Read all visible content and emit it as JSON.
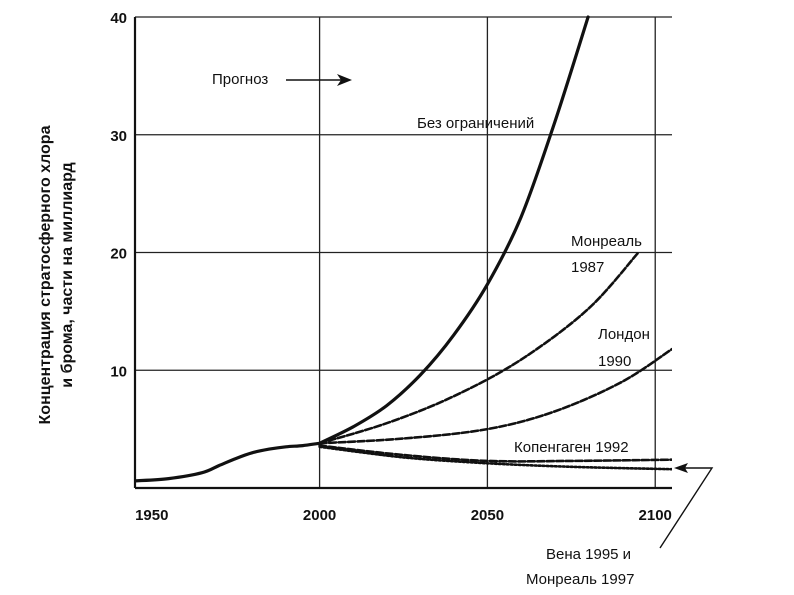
{
  "chart_data": {
    "type": "line",
    "ylabel_lines": [
      "Концентрация стратосферного хлора",
      "и брома, части на миллиард"
    ],
    "xlim": [
      1945,
      2105
    ],
    "ylim": [
      0,
      40
    ],
    "x_ticks": [
      1950,
      2000,
      2050,
      2100
    ],
    "y_ticks": [
      10,
      20,
      30,
      40
    ],
    "grid": true,
    "forecast_label": "Прогноз",
    "forecast_arrow": "→",
    "historical": {
      "x": [
        1945,
        1955,
        1965,
        1970,
        1975,
        1980,
        1985,
        1990,
        1995,
        2000
      ],
      "y": [
        0.6,
        0.8,
        1.3,
        1.9,
        2.5,
        3.0,
        3.3,
        3.5,
        3.6,
        3.8
      ]
    },
    "series": [
      {
        "name": "Без ограничений",
        "style": "solid",
        "x": [
          2000,
          2010,
          2020,
          2030,
          2040,
          2050,
          2060,
          2070,
          2080
        ],
        "y": [
          3.8,
          5.2,
          7.0,
          9.6,
          13.0,
          17.3,
          23.0,
          31.0,
          40.0
        ]
      },
      {
        "name_lines": [
          "Монреаль",
          "1987"
        ],
        "style": "dashed",
        "x": [
          2000,
          2020,
          2040,
          2060,
          2080,
          2095
        ],
        "y": [
          3.8,
          5.5,
          7.8,
          10.9,
          15.2,
          20.0
        ]
      },
      {
        "name_lines": [
          "Лондон",
          "1990"
        ],
        "style": "dashed",
        "x": [
          2000,
          2025,
          2050,
          2070,
          2090,
          2105
        ],
        "y": [
          3.8,
          4.2,
          5.0,
          6.5,
          9.0,
          11.8
        ]
      },
      {
        "name": "Копенгаген 1992",
        "style": "dashed",
        "x": [
          2000,
          2025,
          2050,
          2075,
          2105
        ],
        "y": [
          3.6,
          2.8,
          2.3,
          2.3,
          2.4
        ]
      },
      {
        "name_lines": [
          "Вена 1995 и",
          "Монреаль 1997"
        ],
        "style": "dotted",
        "x": [
          2000,
          2025,
          2050,
          2075,
          2105
        ],
        "y": [
          3.5,
          2.6,
          2.1,
          1.8,
          1.6
        ]
      }
    ]
  }
}
